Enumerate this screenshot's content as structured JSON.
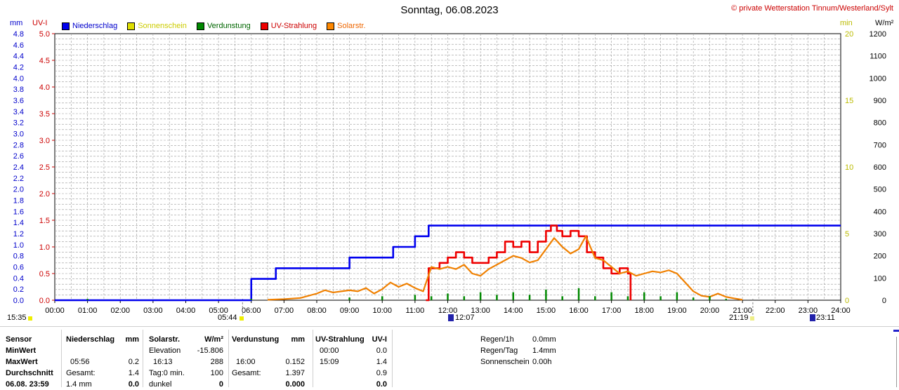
{
  "header": {
    "title": "Sonntag, 06.08.2023",
    "copyright": "© private Wetterstation Tinnum/Westerland/Sylt"
  },
  "units": {
    "mm": "mm",
    "uvi": "UV-I",
    "min": "min",
    "wm2": "W/m²"
  },
  "legend": [
    {
      "label": "Niederschlag",
      "color": "#0000ee",
      "text_color": "#0000cc"
    },
    {
      "label": "Sonnenschein",
      "color": "#dddd00",
      "text_color": "#cccc00"
    },
    {
      "label": "Verdunstung",
      "color": "#008800",
      "text_color": "#006600"
    },
    {
      "label": "UV-Strahlung",
      "color": "#ee0000",
      "text_color": "#cc0000"
    },
    {
      "label": "Solarstr.",
      "color": "#ff8800",
      "text_color": "#ee6600"
    }
  ],
  "colors": {
    "rain": "#0000ee",
    "uv": "#ee0000",
    "solar": "#f08000",
    "evap": "#008800",
    "grid": "#9a9a9a",
    "uv_axis": "#cc0000",
    "mm_axis": "#0000cc",
    "min_axis": "#bbbb00",
    "wm2_axis": "#000000"
  },
  "axis_labels": {
    "mm_ticks": [
      "0.0",
      "0.2",
      "0.4",
      "0.6",
      "0.8",
      "1.0",
      "1.2",
      "1.4",
      "1.6",
      "1.8",
      "2.0",
      "2.2",
      "2.4",
      "2.6",
      "2.8",
      "3.0",
      "3.2",
      "3.4",
      "3.6",
      "3.8",
      "4.0",
      "4.2",
      "4.4",
      "4.6",
      "4.8"
    ],
    "uvi_ticks": [
      "0.0",
      "0.5",
      "1.0",
      "1.5",
      "2.0",
      "2.5",
      "3.0",
      "3.5",
      "4.0",
      "4.5",
      "5.0"
    ],
    "min_ticks": [
      "0",
      "5",
      "10",
      "15",
      "20"
    ],
    "wm2_ticks": [
      "0",
      "100",
      "200",
      "300",
      "400",
      "500",
      "600",
      "700",
      "800",
      "900",
      "1000",
      "1100",
      "1200"
    ],
    "x_ticks": [
      "00:00",
      "01:00",
      "02:00",
      "03:00",
      "04:00",
      "05:00",
      "06:00",
      "07:00",
      "08:00",
      "09:00",
      "10:00",
      "11:00",
      "12:00",
      "13:00",
      "14:00",
      "15:00",
      "16:00",
      "17:00",
      "18:00",
      "19:00",
      "20:00",
      "21:00",
      "22:00",
      "23:00",
      "24:00"
    ]
  },
  "time_markers": {
    "start": "15:35",
    "sunrise": "05:44",
    "noon": "12:07",
    "sunset": "21:19",
    "end": "23:11"
  },
  "chart_data": {
    "type": "line",
    "title": "Sonntag, 06.08.2023",
    "x_range": [
      "00:00",
      "24:00"
    ],
    "axes": {
      "left_mm": {
        "label": "mm",
        "range": [
          0,
          4.8
        ]
      },
      "left_uvi": {
        "label": "UV-I",
        "range": [
          0,
          5.0
        ]
      },
      "right_min": {
        "label": "min",
        "range": [
          0,
          20
        ]
      },
      "right_wm2": {
        "label": "W/m²",
        "range": [
          0,
          1200
        ]
      }
    },
    "grid": true,
    "series": [
      {
        "name": "Niederschlag",
        "axis": "left_uvi",
        "type": "step",
        "x": [
          "00:00",
          "05:56",
          "06:00",
          "06:45",
          "09:00",
          "10:20",
          "11:00",
          "11:25",
          "24:00"
        ],
        "values": [
          0,
          0,
          0.4,
          0.6,
          0.8,
          1.0,
          1.2,
          1.4,
          1.4
        ]
      },
      {
        "name": "UV-Strahlung",
        "axis": "left_uvi",
        "type": "step",
        "x": [
          "11:20",
          "11:25",
          "11:45",
          "12:00",
          "12:15",
          "12:30",
          "12:45",
          "13:00",
          "13:15",
          "13:30",
          "13:45",
          "14:00",
          "14:15",
          "14:30",
          "14:45",
          "15:00",
          "15:09",
          "15:20",
          "15:30",
          "15:45",
          "16:00",
          "16:15",
          "16:30",
          "16:45",
          "17:00",
          "17:15",
          "17:30",
          "17:35"
        ],
        "values": [
          0,
          0.6,
          0.7,
          0.8,
          0.9,
          0.8,
          0.7,
          0.7,
          0.8,
          0.9,
          1.1,
          1.0,
          1.1,
          0.9,
          1.1,
          1.3,
          1.4,
          1.3,
          1.2,
          1.3,
          1.2,
          0.9,
          0.8,
          0.6,
          0.5,
          0.6,
          0.5,
          0
        ]
      },
      {
        "name": "Solarstr.",
        "axis": "right_wm2",
        "type": "line",
        "x": [
          "06:30",
          "07:00",
          "07:30",
          "08:00",
          "08:15",
          "08:30",
          "09:00",
          "09:15",
          "09:30",
          "09:45",
          "10:00",
          "10:15",
          "10:30",
          "10:45",
          "11:00",
          "11:15",
          "11:30",
          "11:45",
          "12:00",
          "12:15",
          "12:30",
          "12:45",
          "13:00",
          "13:15",
          "13:30",
          "13:45",
          "14:00",
          "14:15",
          "14:30",
          "14:45",
          "15:00",
          "15:15",
          "15:30",
          "15:45",
          "16:00",
          "16:13",
          "16:30",
          "16:45",
          "17:00",
          "17:15",
          "17:30",
          "17:45",
          "18:00",
          "18:15",
          "18:30",
          "18:45",
          "19:00",
          "19:15",
          "19:30",
          "19:45",
          "20:00",
          "20:15",
          "20:30",
          "20:45",
          "21:00"
        ],
        "values": [
          2,
          5,
          10,
          30,
          45,
          35,
          45,
          40,
          55,
          30,
          50,
          80,
          60,
          75,
          55,
          40,
          150,
          140,
          150,
          140,
          160,
          120,
          110,
          140,
          160,
          180,
          200,
          190,
          170,
          180,
          230,
          280,
          240,
          210,
          230,
          288,
          190,
          180,
          150,
          120,
          130,
          110,
          120,
          130,
          125,
          135,
          120,
          80,
          40,
          20,
          15,
          30,
          15,
          8,
          2
        ]
      },
      {
        "name": "Verdunstung",
        "axis": "right_min",
        "type": "bar",
        "x": [
          "01:00",
          "06:00",
          "09:00",
          "10:00",
          "11:00",
          "11:30",
          "12:00",
          "12:30",
          "13:00",
          "13:30",
          "14:00",
          "14:30",
          "15:00",
          "15:30",
          "16:00",
          "16:30",
          "17:00",
          "17:30",
          "18:00",
          "18:30",
          "19:00",
          "19:30",
          "20:00",
          "20:30"
        ],
        "values": [
          0.1,
          0.1,
          0.2,
          0.3,
          0.4,
          0.3,
          0.5,
          0.3,
          0.6,
          0.4,
          0.6,
          0.4,
          0.8,
          0.3,
          0.9,
          0.3,
          0.6,
          0.3,
          0.6,
          0.3,
          0.6,
          0.2,
          0.3,
          0.1
        ]
      }
    ]
  },
  "table": {
    "col_sensor": {
      "header": "Sensor",
      "rows": [
        "MinWert",
        "MaxWert",
        "Durchschnitt",
        "06.08. 23:59"
      ]
    },
    "col_rain": {
      "header": "Niederschlag",
      "unit": "mm",
      "rows": [
        [
          "",
          ""
        ],
        [
          "05:56",
          "0.2"
        ],
        [
          "Gesamt:",
          "1.4"
        ],
        [
          "1.4 mm",
          "0.0"
        ]
      ]
    },
    "col_solar": {
      "header": "Solarstr.",
      "unit": "W/m²",
      "rows": [
        [
          "Elevation",
          "-15.806"
        ],
        [
          "16:13",
          "288"
        ],
        [
          "Tag:0 min.",
          "100"
        ],
        [
          "dunkel",
          "0"
        ]
      ]
    },
    "col_evap": {
      "header": "Verdunstung",
      "unit": "mm",
      "rows": [
        [
          "",
          ""
        ],
        [
          "16:00",
          "0.152"
        ],
        [
          "Gesamt:",
          "1.397"
        ],
        [
          "",
          "0.000"
        ]
      ]
    },
    "col_uv": {
      "header": "UV-Strahlung",
      "unit": "UV-I",
      "rows": [
        [
          "00:00",
          "0.0"
        ],
        [
          "15:09",
          "1.4"
        ],
        [
          "",
          "0.9"
        ],
        [
          "",
          "0.0"
        ]
      ]
    },
    "summary": [
      {
        "label": "Regen/1h",
        "value": "0.0mm"
      },
      {
        "label": "Regen/Tag",
        "value": "1.4mm"
      },
      {
        "label": "Sonnenschein",
        "value": "0.00h"
      }
    ]
  }
}
